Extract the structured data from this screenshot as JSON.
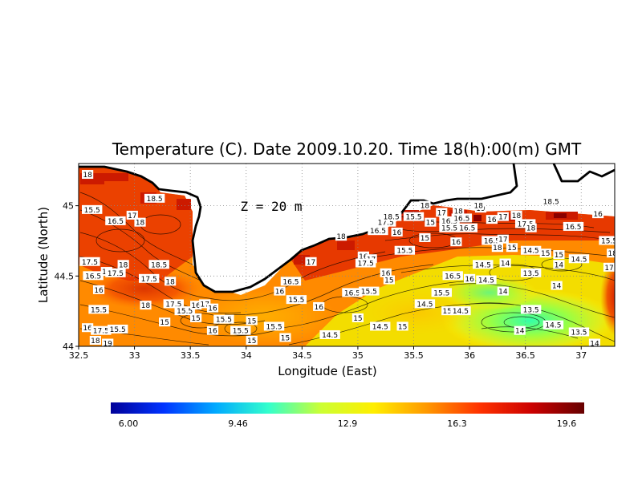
{
  "title": "Temperature (C). Date 2009.10.20. Time 18(h):00(m) GMT",
  "depth_label": "Z = 20 m",
  "xlabel": "Longitude (East)",
  "ylabel": "Latitude (North)",
  "x_ticks": [
    "32.5",
    "33",
    "33.5",
    "34",
    "34.5",
    "35",
    "35.5",
    "36",
    "36.5",
    "37"
  ],
  "y_ticks": [
    "44",
    "44.5",
    "45"
  ],
  "colorbar": {
    "min": 6.0,
    "max": 19.6,
    "tick_labels": [
      "6.00",
      "9.46",
      "12.9",
      "16.3",
      "19.6"
    ],
    "colors": [
      "#000099",
      "#0033ff",
      "#00aaff",
      "#33ffcc",
      "#ccff33",
      "#ffee00",
      "#ff9900",
      "#ff3300",
      "#cc0000",
      "#660000"
    ]
  },
  "chart_data": {
    "type": "heatmap",
    "title": "Temperature (C). Date 2009.10.20. Time 18(h):00(m) GMT",
    "xlabel": "Longitude (East)",
    "ylabel": "Latitude (North)",
    "xlim": [
      32.5,
      37.3
    ],
    "ylim": [
      44.0,
      45.3
    ],
    "grid": true,
    "contour_labels": [
      {
        "x": 32.58,
        "y": 45.22,
        "text": "18"
      },
      {
        "x": 33.18,
        "y": 45.05,
        "text": "18.5"
      },
      {
        "x": 32.62,
        "y": 44.97,
        "text": "15.5"
      },
      {
        "x": 32.83,
        "y": 44.89,
        "text": "16.5"
      },
      {
        "x": 32.98,
        "y": 44.93,
        "text": "17"
      },
      {
        "x": 33.05,
        "y": 44.88,
        "text": "18"
      },
      {
        "x": 32.6,
        "y": 44.6,
        "text": "17.5"
      },
      {
        "x": 32.63,
        "y": 44.5,
        "text": "16.5"
      },
      {
        "x": 32.75,
        "y": 44.53,
        "text": "17"
      },
      {
        "x": 32.83,
        "y": 44.52,
        "text": "17.5"
      },
      {
        "x": 32.9,
        "y": 44.58,
        "text": "18"
      },
      {
        "x": 33.22,
        "y": 44.58,
        "text": "18.5"
      },
      {
        "x": 33.13,
        "y": 44.48,
        "text": "17.5"
      },
      {
        "x": 33.32,
        "y": 44.46,
        "text": "18"
      },
      {
        "x": 32.68,
        "y": 44.4,
        "text": "16"
      },
      {
        "x": 32.68,
        "y": 44.26,
        "text": "15.5"
      },
      {
        "x": 33.1,
        "y": 44.29,
        "text": "18"
      },
      {
        "x": 33.35,
        "y": 44.3,
        "text": "17.5"
      },
      {
        "x": 33.45,
        "y": 44.25,
        "text": "15.5"
      },
      {
        "x": 33.55,
        "y": 44.29,
        "text": "16"
      },
      {
        "x": 33.63,
        "y": 44.3,
        "text": "17"
      },
      {
        "x": 33.7,
        "y": 44.27,
        "text": "16"
      },
      {
        "x": 33.27,
        "y": 44.17,
        "text": "15"
      },
      {
        "x": 33.55,
        "y": 44.2,
        "text": "15"
      },
      {
        "x": 33.8,
        "y": 44.19,
        "text": "15.5"
      },
      {
        "x": 32.58,
        "y": 44.13,
        "text": "16"
      },
      {
        "x": 32.7,
        "y": 44.11,
        "text": "17.5"
      },
      {
        "x": 32.85,
        "y": 44.12,
        "text": "15.5"
      },
      {
        "x": 33.7,
        "y": 44.11,
        "text": "16"
      },
      {
        "x": 33.95,
        "y": 44.11,
        "text": "15.5"
      },
      {
        "x": 34.05,
        "y": 44.18,
        "text": "15"
      },
      {
        "x": 34.05,
        "y": 44.04,
        "text": "15"
      },
      {
        "x": 32.65,
        "y": 44.04,
        "text": "18"
      },
      {
        "x": 32.76,
        "y": 44.02,
        "text": "19"
      },
      {
        "x": 34.25,
        "y": 44.14,
        "text": "15.5"
      },
      {
        "x": 34.4,
        "y": 44.46,
        "text": "16.5"
      },
      {
        "x": 34.3,
        "y": 44.39,
        "text": "16"
      },
      {
        "x": 34.45,
        "y": 44.33,
        "text": "15.5"
      },
      {
        "x": 34.65,
        "y": 44.28,
        "text": "16"
      },
      {
        "x": 34.35,
        "y": 44.06,
        "text": "15"
      },
      {
        "x": 34.75,
        "y": 44.08,
        "text": "14.5"
      },
      {
        "x": 34.58,
        "y": 44.6,
        "text": "17"
      },
      {
        "x": 34.85,
        "y": 44.78,
        "text": "18"
      },
      {
        "x": 34.95,
        "y": 44.38,
        "text": "16.5"
      },
      {
        "x": 35.1,
        "y": 44.39,
        "text": "15.5"
      },
      {
        "x": 35.0,
        "y": 44.2,
        "text": "15"
      },
      {
        "x": 35.2,
        "y": 44.14,
        "text": "14.5"
      },
      {
        "x": 35.4,
        "y": 44.14,
        "text": "15"
      },
      {
        "x": 35.05,
        "y": 44.64,
        "text": "16"
      },
      {
        "x": 35.12,
        "y": 44.62,
        "text": "17"
      },
      {
        "x": 35.07,
        "y": 44.59,
        "text": "17.5"
      },
      {
        "x": 35.25,
        "y": 44.52,
        "text": "16"
      },
      {
        "x": 35.28,
        "y": 44.47,
        "text": "15"
      },
      {
        "x": 35.18,
        "y": 44.82,
        "text": "16.5"
      },
      {
        "x": 35.25,
        "y": 44.88,
        "text": "17.5"
      },
      {
        "x": 35.3,
        "y": 44.92,
        "text": "18.5"
      },
      {
        "x": 35.35,
        "y": 44.81,
        "text": "16"
      },
      {
        "x": 35.42,
        "y": 44.68,
        "text": "15.5"
      },
      {
        "x": 35.5,
        "y": 44.92,
        "text": "15.5"
      },
      {
        "x": 35.6,
        "y": 45.0,
        "text": "18"
      },
      {
        "x": 35.65,
        "y": 44.88,
        "text": "15"
      },
      {
        "x": 35.6,
        "y": 44.77,
        "text": "15"
      },
      {
        "x": 35.75,
        "y": 44.95,
        "text": "17"
      },
      {
        "x": 35.82,
        "y": 44.89,
        "text": "16.5"
      },
      {
        "x": 35.82,
        "y": 44.84,
        "text": "15.5"
      },
      {
        "x": 35.9,
        "y": 44.96,
        "text": "18"
      },
      {
        "x": 35.93,
        "y": 44.91,
        "text": "16.5"
      },
      {
        "x": 35.98,
        "y": 44.84,
        "text": "16.5"
      },
      {
        "x": 35.88,
        "y": 44.74,
        "text": "16"
      },
      {
        "x": 36.1,
        "y": 44.98,
        "text": "19"
      },
      {
        "x": 36.08,
        "y": 45.0,
        "text": "18"
      },
      {
        "x": 36.2,
        "y": 44.9,
        "text": "16"
      },
      {
        "x": 36.3,
        "y": 44.92,
        "text": "17"
      },
      {
        "x": 36.42,
        "y": 44.93,
        "text": "18"
      },
      {
        "x": 36.5,
        "y": 44.87,
        "text": "17.5"
      },
      {
        "x": 36.55,
        "y": 44.84,
        "text": "18"
      },
      {
        "x": 36.73,
        "y": 45.03,
        "text": "18.5"
      },
      {
        "x": 36.93,
        "y": 44.85,
        "text": "16.5"
      },
      {
        "x": 37.15,
        "y": 44.94,
        "text": "16"
      },
      {
        "x": 37.25,
        "y": 44.75,
        "text": "15.5"
      },
      {
        "x": 37.28,
        "y": 44.66,
        "text": "18"
      },
      {
        "x": 37.25,
        "y": 44.56,
        "text": "17"
      },
      {
        "x": 36.2,
        "y": 44.75,
        "text": "16.5"
      },
      {
        "x": 36.3,
        "y": 44.76,
        "text": "17"
      },
      {
        "x": 36.25,
        "y": 44.7,
        "text": "18"
      },
      {
        "x": 36.38,
        "y": 44.7,
        "text": "15"
      },
      {
        "x": 36.55,
        "y": 44.68,
        "text": "14.5"
      },
      {
        "x": 36.68,
        "y": 44.66,
        "text": "15"
      },
      {
        "x": 36.8,
        "y": 44.65,
        "text": "15"
      },
      {
        "x": 36.98,
        "y": 44.62,
        "text": "14.5"
      },
      {
        "x": 36.12,
        "y": 44.58,
        "text": "14.5"
      },
      {
        "x": 36.32,
        "y": 44.59,
        "text": "14"
      },
      {
        "x": 36.55,
        "y": 44.52,
        "text": "13.5"
      },
      {
        "x": 36.8,
        "y": 44.58,
        "text": "14"
      },
      {
        "x": 35.85,
        "y": 44.5,
        "text": "16.5"
      },
      {
        "x": 36.0,
        "y": 44.48,
        "text": "16"
      },
      {
        "x": 36.15,
        "y": 44.47,
        "text": "14.5"
      },
      {
        "x": 36.3,
        "y": 44.39,
        "text": "14"
      },
      {
        "x": 36.78,
        "y": 44.43,
        "text": "14"
      },
      {
        "x": 35.75,
        "y": 44.38,
        "text": "15.5"
      },
      {
        "x": 35.6,
        "y": 44.3,
        "text": "14.5"
      },
      {
        "x": 35.8,
        "y": 44.25,
        "text": "15"
      },
      {
        "x": 35.92,
        "y": 44.25,
        "text": "14.5"
      },
      {
        "x": 36.55,
        "y": 44.26,
        "text": "13.5"
      },
      {
        "x": 36.75,
        "y": 44.15,
        "text": "14.5"
      },
      {
        "x": 36.45,
        "y": 44.11,
        "text": "14"
      },
      {
        "x": 36.98,
        "y": 44.1,
        "text": "13.5"
      },
      {
        "x": 37.12,
        "y": 44.02,
        "text": "14"
      }
    ]
  }
}
